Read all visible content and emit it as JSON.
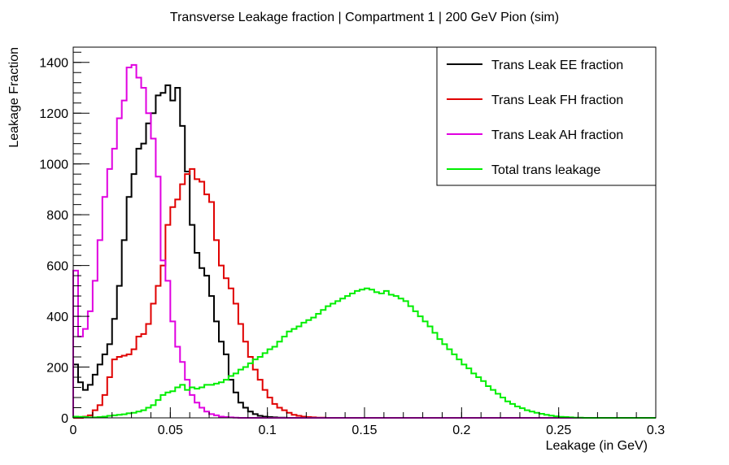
{
  "chart_data": {
    "type": "line",
    "title": "Transverse Leakage fraction | Compartment 1 | 200 GeV Pion (sim)",
    "xlabel": "Leakage (in GeV)",
    "ylabel": "Leakage Fraction",
    "xlim": [
      0,
      0.3
    ],
    "ylim": [
      0,
      1460
    ],
    "x_ticks": [
      0,
      0.05,
      0.1,
      0.15,
      0.2,
      0.25,
      0.3
    ],
    "x_tick_labels": [
      "0",
      "0.05",
      "0.1",
      "0.15",
      "0.2",
      "0.25",
      "0.3"
    ],
    "y_ticks": [
      0,
      200,
      400,
      600,
      800,
      1000,
      1200,
      1400
    ],
    "y_tick_labels": [
      "0",
      "200",
      "400",
      "600",
      "800",
      "1000",
      "1200",
      "1400"
    ],
    "grid": false,
    "legend_position": "top-right",
    "histogram": {
      "x_start": 0,
      "bin_width": 0.0025
    },
    "series": [
      {
        "name": "Trans Leak EE fraction",
        "color": "#000000",
        "values": [
          210,
          140,
          110,
          130,
          170,
          210,
          250,
          290,
          390,
          520,
          700,
          870,
          960,
          1060,
          1080,
          1160,
          1200,
          1270,
          1280,
          1310,
          1250,
          1300,
          1150,
          970,
          760,
          650,
          590,
          560,
          480,
          380,
          300,
          250,
          150,
          100,
          60,
          40,
          25,
          15,
          8,
          5,
          3,
          2,
          1,
          1,
          0,
          0,
          0,
          0,
          0,
          0,
          0,
          0,
          0,
          0,
          0,
          0,
          0,
          0,
          0,
          0,
          0,
          0,
          0,
          0,
          0,
          0,
          0,
          0,
          0,
          0,
          0,
          0,
          0,
          0,
          0,
          0,
          0,
          0,
          0,
          0,
          0,
          0,
          0,
          0,
          0,
          0,
          0,
          0,
          0,
          0,
          0,
          0,
          0,
          0,
          0,
          0,
          0,
          0,
          0,
          0,
          0,
          0,
          0,
          0,
          0,
          0,
          0,
          0,
          0,
          0,
          0,
          0,
          0,
          0,
          0,
          0,
          0,
          0,
          0,
          0
        ]
      },
      {
        "name": "Trans Leak FH fraction",
        "color": "#e00000",
        "values": [
          0,
          0,
          5,
          10,
          30,
          50,
          90,
          160,
          230,
          240,
          245,
          250,
          270,
          320,
          330,
          370,
          450,
          520,
          600,
          760,
          830,
          860,
          920,
          960,
          980,
          940,
          930,
          880,
          850,
          700,
          600,
          550,
          510,
          450,
          370,
          300,
          240,
          190,
          150,
          110,
          80,
          55,
          40,
          30,
          20,
          12,
          8,
          5,
          3,
          2,
          1,
          1,
          0,
          0,
          0,
          0,
          0,
          0,
          0,
          0,
          0,
          0,
          0,
          0,
          0,
          0,
          0,
          0,
          0,
          0,
          0,
          0,
          0,
          0,
          0,
          0,
          0,
          0,
          0,
          0,
          0,
          0,
          0,
          0,
          0,
          0,
          0,
          0,
          0,
          0,
          0,
          0,
          0,
          0,
          0,
          0,
          0,
          0,
          0,
          0,
          0,
          0,
          0,
          0,
          0,
          0,
          0,
          0,
          0,
          0,
          0,
          0,
          0,
          0,
          0,
          0,
          0,
          0,
          0,
          0
        ]
      },
      {
        "name": "Trans Leak AH fraction",
        "color": "#e000e0",
        "values": [
          580,
          320,
          350,
          420,
          540,
          700,
          870,
          980,
          1060,
          1180,
          1250,
          1380,
          1390,
          1340,
          1300,
          1200,
          1100,
          950,
          620,
          540,
          380,
          280,
          220,
          150,
          90,
          60,
          40,
          25,
          15,
          10,
          5,
          3,
          2,
          1,
          0,
          0,
          0,
          0,
          0,
          0,
          0,
          0,
          0,
          0,
          0,
          0,
          0,
          0,
          0,
          0,
          0,
          0,
          0,
          0,
          0,
          0,
          0,
          0,
          0,
          0,
          0,
          0,
          0,
          0,
          0,
          0,
          0,
          0,
          0,
          0,
          0,
          0,
          0,
          0,
          0,
          0,
          0,
          0,
          0,
          0,
          0,
          0,
          0,
          0,
          0,
          0,
          0,
          0,
          0,
          0,
          0,
          0,
          0,
          0,
          0,
          0,
          0,
          0,
          0,
          0,
          0,
          0,
          0,
          0,
          0,
          0,
          0,
          0,
          0,
          0,
          0,
          0,
          0,
          0,
          0,
          0,
          0,
          0,
          0,
          0
        ]
      },
      {
        "name": "Total trans leakage",
        "color": "#00ee00",
        "values": [
          5,
          4,
          3,
          2,
          2,
          3,
          5,
          8,
          10,
          12,
          14,
          18,
          20,
          25,
          30,
          40,
          50,
          70,
          90,
          100,
          105,
          120,
          130,
          110,
          120,
          115,
          120,
          130,
          130,
          135,
          140,
          150,
          165,
          175,
          190,
          200,
          215,
          230,
          240,
          255,
          270,
          280,
          300,
          320,
          340,
          350,
          360,
          375,
          385,
          395,
          410,
          425,
          440,
          450,
          460,
          470,
          480,
          490,
          500,
          505,
          510,
          505,
          495,
          490,
          500,
          485,
          480,
          470,
          460,
          440,
          420,
          400,
          380,
          360,
          335,
          310,
          290,
          270,
          250,
          230,
          210,
          195,
          175,
          160,
          145,
          125,
          110,
          95,
          80,
          65,
          55,
          45,
          38,
          30,
          25,
          20,
          16,
          12,
          9,
          6,
          4,
          3,
          2,
          1,
          1,
          0,
          0,
          0,
          0,
          0,
          0,
          0,
          0,
          0,
          0,
          0,
          0,
          0,
          0,
          0
        ]
      }
    ]
  }
}
